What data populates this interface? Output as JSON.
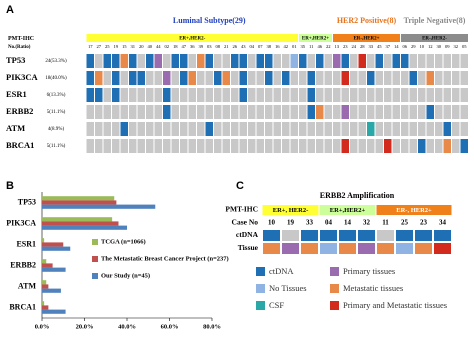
{
  "chart_data": [
    {
      "type": "heatmap",
      "panel": "A",
      "title_groups": [
        {
          "label": "Luminal Subtype(29)",
          "span": 29,
          "color": "#1f3fbf"
        },
        {
          "label": "HER2 Positive(8)",
          "span": 8,
          "color": "#e8731a"
        },
        {
          "label": "Triple Negative(8)",
          "span": 8,
          "color": "#8a8a8a"
        }
      ],
      "groups": [
        {
          "label": "ER+,HER2-",
          "span": 25,
          "color": "#ffff33"
        },
        {
          "label": "ER+,HER2+",
          "span": 4,
          "color": "#ccff99"
        },
        {
          "label": "ER-,HER2+",
          "span": 8,
          "color": "#f0801a"
        },
        {
          "label": "ER-,HER2-",
          "span": 8,
          "color": "#8c8c8c"
        }
      ],
      "header_label": "PMT-IHC",
      "ratio_label": "No.(Ratio)",
      "patients": [
        "17",
        "27",
        "25",
        "19",
        "15",
        "31",
        "20",
        "40",
        "44",
        "02",
        "18",
        "47",
        "36",
        "39",
        "03",
        "08",
        "21",
        "26",
        "43",
        "04",
        "07",
        "38",
        "16",
        "42",
        "01",
        "35",
        "11",
        "46",
        "22",
        "13",
        "23",
        "24",
        "28",
        "33",
        "45",
        "37",
        "14",
        "06",
        "29",
        "10",
        "12",
        "30",
        "09",
        "32",
        "05"
      ],
      "empty_color": "#c8c8c8",
      "rows": [
        {
          "gene": "TP53",
          "ratio": "24(53.3%)",
          "values": [
            0,
            -1,
            0,
            0,
            4,
            0,
            -1,
            0,
            3,
            -1,
            0,
            0,
            -1,
            4,
            0,
            -1,
            -1,
            0,
            0,
            -1,
            0,
            0,
            -1,
            -1,
            1,
            0,
            -1,
            0,
            -1,
            3,
            0,
            -1,
            5,
            -1,
            0,
            -1,
            0,
            0,
            -1,
            -1,
            -1,
            -1,
            -1,
            -1,
            -1
          ]
        },
        {
          "gene": "PIK3CA",
          "ratio": "18(40.0%)",
          "values": [
            0,
            4,
            -1,
            0,
            -1,
            0,
            0,
            -1,
            -1,
            3,
            -1,
            0,
            4,
            -1,
            -1,
            0,
            4,
            -1,
            0,
            -1,
            -1,
            0,
            -1,
            0,
            -1,
            -1,
            0,
            -1,
            -1,
            -1,
            5,
            -1,
            -1,
            0,
            -1,
            -1,
            -1,
            -1,
            0,
            -1,
            4,
            -1,
            -1,
            -1,
            -1
          ]
        },
        {
          "gene": "ESR1",
          "ratio": "6(13.3%)",
          "values": [
            0,
            0,
            -1,
            0,
            -1,
            -1,
            -1,
            -1,
            -1,
            0,
            -1,
            -1,
            -1,
            -1,
            -1,
            -1,
            -1,
            -1,
            0,
            -1,
            -1,
            -1,
            -1,
            -1,
            -1,
            -1,
            0,
            -1,
            -1,
            -1,
            -1,
            -1,
            -1,
            -1,
            -1,
            -1,
            -1,
            -1,
            -1,
            -1,
            -1,
            -1,
            -1,
            -1,
            -1
          ]
        },
        {
          "gene": "ERBB2",
          "ratio": "5(11.1%)",
          "values": [
            -1,
            -1,
            -1,
            -1,
            -1,
            -1,
            -1,
            -1,
            -1,
            0,
            -1,
            -1,
            -1,
            -1,
            -1,
            -1,
            -1,
            -1,
            -1,
            -1,
            -1,
            -1,
            -1,
            -1,
            -1,
            -1,
            0,
            4,
            -1,
            -1,
            3,
            -1,
            -1,
            -1,
            -1,
            -1,
            -1,
            -1,
            -1,
            -1,
            0,
            -1,
            -1,
            -1,
            -1
          ]
        },
        {
          "gene": "ATM",
          "ratio": "4(8.9%)",
          "values": [
            -1,
            -1,
            -1,
            -1,
            0,
            -1,
            -1,
            -1,
            -1,
            -1,
            -1,
            -1,
            -1,
            -1,
            0,
            -1,
            -1,
            -1,
            -1,
            -1,
            -1,
            -1,
            -1,
            -1,
            -1,
            -1,
            -1,
            -1,
            -1,
            -1,
            -1,
            -1,
            -1,
            2,
            -1,
            -1,
            -1,
            -1,
            -1,
            -1,
            -1,
            -1,
            0,
            -1,
            -1
          ]
        },
        {
          "gene": "BRCA1",
          "ratio": "5(11.1%)",
          "values": [
            -1,
            -1,
            -1,
            -1,
            -1,
            -1,
            -1,
            -1,
            -1,
            -1,
            -1,
            -1,
            -1,
            -1,
            -1,
            -1,
            -1,
            -1,
            -1,
            -1,
            -1,
            -1,
            -1,
            -1,
            -1,
            -1,
            -1,
            -1,
            -1,
            -1,
            5,
            -1,
            -1,
            -1,
            -1,
            5,
            -1,
            -1,
            -1,
            0,
            -1,
            -1,
            4,
            -1,
            0
          ]
        }
      ]
    },
    {
      "type": "hbar",
      "panel": "B",
      "categories": [
        "TP53",
        "PIK3CA",
        "ESR1",
        "ERBB2",
        "ATM",
        "BRCA1"
      ],
      "series": [
        {
          "name": "TCGA (n=1066)",
          "color": "#9bbb59",
          "values": [
            34,
            33,
            1,
            2,
            2,
            1
          ]
        },
        {
          "name": "The Metastatic Breast Cancer Project (n=237)",
          "color": "#c0504d",
          "values": [
            35,
            36,
            10,
            5,
            3,
            3
          ]
        },
        {
          "name": "Our Study (n=45)",
          "color": "#4f81bd",
          "values": [
            53.3,
            40.0,
            13.3,
            11.1,
            8.9,
            11.1
          ]
        }
      ],
      "xlim": [
        0,
        80
      ],
      "xticks": [
        {
          "value": 0,
          "label": "0.0%"
        },
        {
          "value": 20,
          "label": "20.0%"
        },
        {
          "value": 40,
          "label": "40.0%"
        },
        {
          "value": 60,
          "label": "60.0%"
        },
        {
          "value": 80,
          "label": "80.0%"
        }
      ]
    },
    {
      "type": "heatmap",
      "panel": "C",
      "title": "ERBB2 Amplification",
      "header_label": "PMT-IHC",
      "case_label": "Case No",
      "groups": [
        {
          "label": "ER+, HER2-",
          "span": 3,
          "color": "#ffff33"
        },
        {
          "label": "ER+,HER2+",
          "span": 3,
          "color": "#ccff99"
        },
        {
          "label": "ER-, HER2+",
          "span": 4,
          "color": "#f0801a"
        }
      ],
      "cases": [
        "10",
        "19",
        "33",
        "04",
        "14",
        "32",
        "11",
        "25",
        "23",
        "34"
      ],
      "empty_color": "#c8c8c8",
      "rows": [
        {
          "label": "ctDNA",
          "values": [
            0,
            -1,
            0,
            0,
            0,
            0,
            -1,
            0,
            0,
            0
          ]
        },
        {
          "label": "Tissue",
          "values": [
            4,
            3,
            4,
            1,
            4,
            3,
            4,
            1,
            4,
            5
          ]
        }
      ],
      "legend": [
        {
          "label": "ctDNA",
          "color": "#1f6fb5"
        },
        {
          "label": "No Tissues",
          "color": "#8fb4e3"
        },
        {
          "label": "CSF",
          "color": "#2aa8a8"
        },
        {
          "label": "Primary tissues",
          "color": "#9b6bb0"
        },
        {
          "label": "Metastatic tissues",
          "color": "#e8894a"
        },
        {
          "label": "Primary and Metastatic tissues",
          "color": "#d22b1e"
        }
      ]
    }
  ]
}
